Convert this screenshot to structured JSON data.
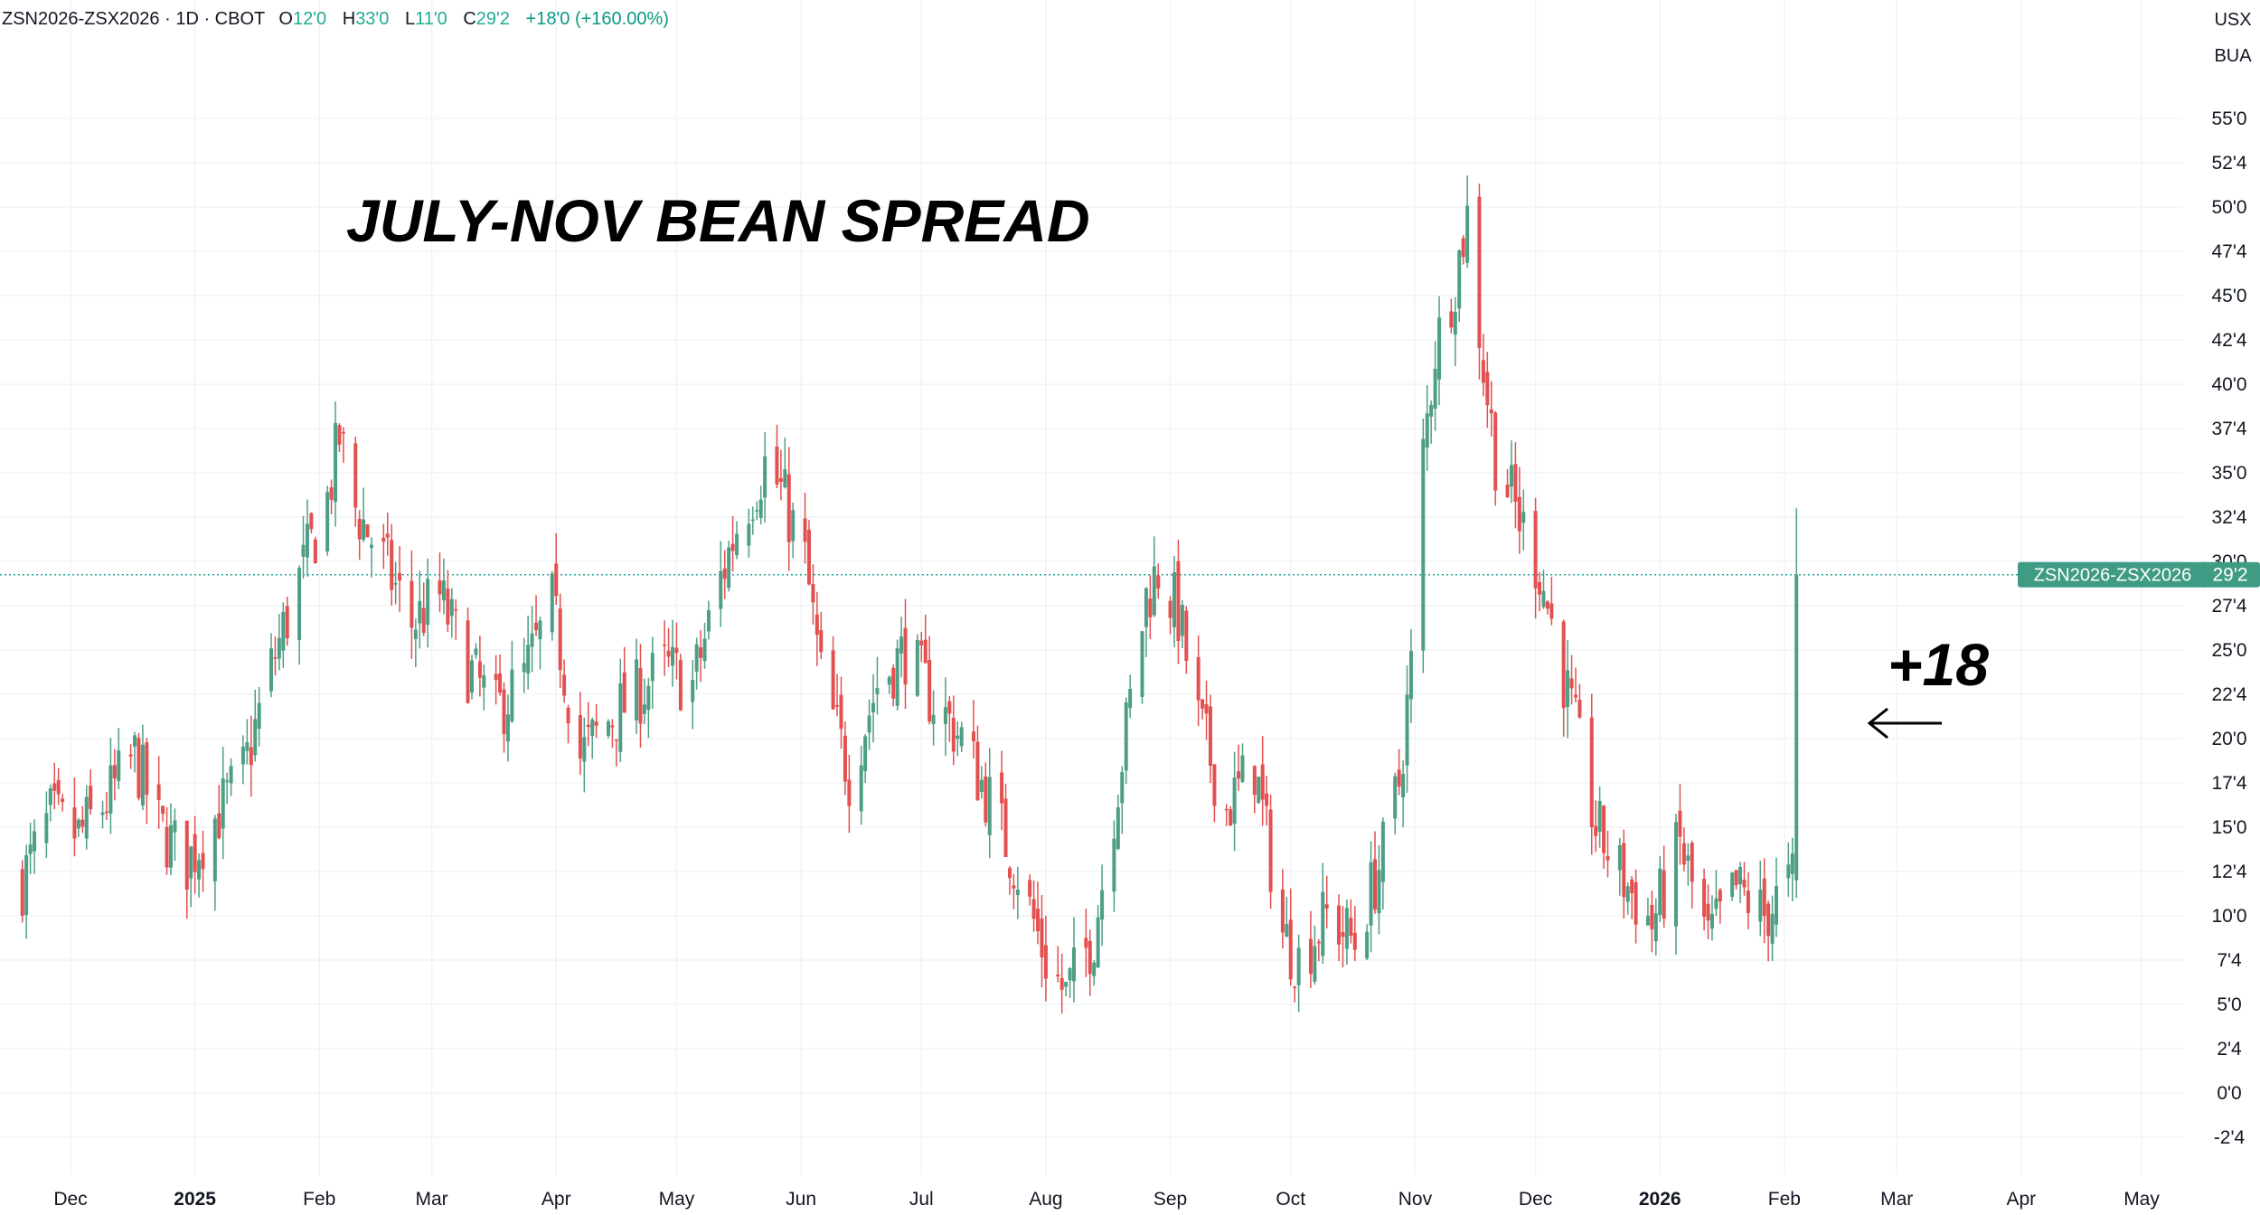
{
  "header": {
    "symbol": "ZSN2026-ZSX2026 · 1D · CBOT",
    "o_label": "O",
    "o_value": "12'0",
    "h_label": "H",
    "h_value": "33'0",
    "l_label": "L",
    "l_value": "11'0",
    "c_label": "C",
    "c_value": "29'2",
    "change": "+18'0 (+160.00%)"
  },
  "units": [
    "USX",
    "BUA"
  ],
  "last_price_label": {
    "name": "ZSN2026-ZSX2026",
    "value": "29'2"
  },
  "colors": {
    "up": "#4e9e86",
    "down": "#e2504f",
    "grid": "#f0f3fa",
    "price_line": "#26a69a",
    "label_bg": "#3f9b84"
  },
  "chart_data": {
    "type": "candlestick",
    "title": "JULY-NOV BEAN SPREAD",
    "annotation": "+18",
    "annotation_arrow": "left-arrow",
    "ylim": [
      -4.5,
      61
    ],
    "y_ticks": [
      {
        "value": 55,
        "label": "55'0"
      },
      {
        "value": 52.5,
        "label": "52'4"
      },
      {
        "value": 50,
        "label": "50'0"
      },
      {
        "value": 47.5,
        "label": "47'4"
      },
      {
        "value": 45,
        "label": "45'0"
      },
      {
        "value": 42.5,
        "label": "42'4"
      },
      {
        "value": 40,
        "label": "40'0"
      },
      {
        "value": 37.5,
        "label": "37'4"
      },
      {
        "value": 35,
        "label": "35'0"
      },
      {
        "value": 32.5,
        "label": "32'4"
      },
      {
        "value": 30,
        "label": "30'0"
      },
      {
        "value": 27.5,
        "label": "27'4"
      },
      {
        "value": 25,
        "label": "25'0"
      },
      {
        "value": 22.5,
        "label": "22'4"
      },
      {
        "value": 20,
        "label": "20'0"
      },
      {
        "value": 17.5,
        "label": "17'4"
      },
      {
        "value": 15,
        "label": "15'0"
      },
      {
        "value": 12.5,
        "label": "12'4"
      },
      {
        "value": 10,
        "label": "10'0"
      },
      {
        "value": 7.5,
        "label": "7'4"
      },
      {
        "value": 5,
        "label": "5'0"
      },
      {
        "value": 2.5,
        "label": "2'4"
      },
      {
        "value": 0,
        "label": "0'0"
      },
      {
        "value": -2.5,
        "label": "-2'4"
      }
    ],
    "x_ticks": [
      {
        "date": "2024-12-01",
        "label": "Dec",
        "bold": false
      },
      {
        "date": "2025-01-01",
        "label": "2025",
        "bold": true
      },
      {
        "date": "2025-02-01",
        "label": "Feb",
        "bold": false
      },
      {
        "date": "2025-03-01",
        "label": "Mar",
        "bold": false
      },
      {
        "date": "2025-04-01",
        "label": "Apr",
        "bold": false
      },
      {
        "date": "2025-05-01",
        "label": "May",
        "bold": false
      },
      {
        "date": "2025-06-01",
        "label": "Jun",
        "bold": false
      },
      {
        "date": "2025-07-01",
        "label": "Jul",
        "bold": false
      },
      {
        "date": "2025-08-01",
        "label": "Aug",
        "bold": false
      },
      {
        "date": "2025-09-01",
        "label": "Sep",
        "bold": false
      },
      {
        "date": "2025-10-01",
        "label": "Oct",
        "bold": false
      },
      {
        "date": "2025-11-01",
        "label": "Nov",
        "bold": false
      },
      {
        "date": "2025-12-01",
        "label": "Dec",
        "bold": false
      },
      {
        "date": "2026-01-01",
        "label": "2026",
        "bold": true
      },
      {
        "date": "2026-02-01",
        "label": "Feb",
        "bold": false
      },
      {
        "date": "2026-03-01",
        "label": "Mar",
        "bold": false
      },
      {
        "date": "2026-04-01",
        "label": "Apr",
        "bold": false
      },
      {
        "date": "2026-05-01",
        "label": "May",
        "bold": false
      }
    ],
    "last_close": 29.25,
    "series_note": "daily close path, approx.",
    "closes": [
      {
        "date": "2024-11-19",
        "close": 12
      },
      {
        "date": "2024-11-26",
        "close": 15.5
      },
      {
        "date": "2024-12-03",
        "close": 14.5
      },
      {
        "date": "2024-12-10",
        "close": 16.5
      },
      {
        "date": "2024-12-17",
        "close": 19
      },
      {
        "date": "2024-12-23",
        "close": 15
      },
      {
        "date": "2024-12-30",
        "close": 13
      },
      {
        "date": "2025-01-06",
        "close": 15.5
      },
      {
        "date": "2025-01-13",
        "close": 18
      },
      {
        "date": "2025-01-20",
        "close": 24
      },
      {
        "date": "2025-01-27",
        "close": 29
      },
      {
        "date": "2025-02-03",
        "close": 33.5
      },
      {
        "date": "2025-02-06",
        "close": 37
      },
      {
        "date": "2025-02-10",
        "close": 33
      },
      {
        "date": "2025-02-17",
        "close": 30
      },
      {
        "date": "2025-02-24",
        "close": 26.5
      },
      {
        "date": "2025-03-03",
        "close": 28
      },
      {
        "date": "2025-03-10",
        "close": 24
      },
      {
        "date": "2025-03-17",
        "close": 21.5
      },
      {
        "date": "2025-03-24",
        "close": 23.5
      },
      {
        "date": "2025-03-31",
        "close": 27.5
      },
      {
        "date": "2025-04-07",
        "close": 19
      },
      {
        "date": "2025-04-14",
        "close": 21
      },
      {
        "date": "2025-04-21",
        "close": 22.5
      },
      {
        "date": "2025-04-28",
        "close": 24
      },
      {
        "date": "2025-05-05",
        "close": 23
      },
      {
        "date": "2025-05-12",
        "close": 29
      },
      {
        "date": "2025-05-16",
        "close": 32
      },
      {
        "date": "2025-05-23",
        "close": 35.5
      },
      {
        "date": "2025-05-27",
        "close": 34
      },
      {
        "date": "2025-06-02",
        "close": 30
      },
      {
        "date": "2025-06-06",
        "close": 23.5
      },
      {
        "date": "2025-06-13",
        "close": 18
      },
      {
        "date": "2025-06-20",
        "close": 23
      },
      {
        "date": "2025-06-27",
        "close": 25
      },
      {
        "date": "2025-07-03",
        "close": 22.5
      },
      {
        "date": "2025-07-11",
        "close": 20
      },
      {
        "date": "2025-07-18",
        "close": 16.5
      },
      {
        "date": "2025-07-25",
        "close": 12.5
      },
      {
        "date": "2025-08-01",
        "close": 7.5
      },
      {
        "date": "2025-08-06",
        "close": 5.5
      },
      {
        "date": "2025-08-13",
        "close": 9
      },
      {
        "date": "2025-08-20",
        "close": 19
      },
      {
        "date": "2025-08-26",
        "close": 28
      },
      {
        "date": "2025-08-29",
        "close": 29.5
      },
      {
        "date": "2025-09-03",
        "close": 27
      },
      {
        "date": "2025-09-08",
        "close": 21
      },
      {
        "date": "2025-09-15",
        "close": 16
      },
      {
        "date": "2025-09-22",
        "close": 18.5
      },
      {
        "date": "2025-09-29",
        "close": 9
      },
      {
        "date": "2025-10-03",
        "close": 7.5
      },
      {
        "date": "2025-10-10",
        "close": 10
      },
      {
        "date": "2025-10-17",
        "close": 8.5
      },
      {
        "date": "2025-10-24",
        "close": 13.5
      },
      {
        "date": "2025-10-28",
        "close": 17.5
      },
      {
        "date": "2025-10-31",
        "close": 24
      },
      {
        "date": "2025-11-03",
        "close": 36
      },
      {
        "date": "2025-11-06",
        "close": 42
      },
      {
        "date": "2025-11-11",
        "close": 46
      },
      {
        "date": "2025-11-14",
        "close": 49.5
      },
      {
        "date": "2025-11-18",
        "close": 41
      },
      {
        "date": "2025-11-21",
        "close": 36
      },
      {
        "date": "2025-11-26",
        "close": 33
      },
      {
        "date": "2025-12-02",
        "close": 29.5
      },
      {
        "date": "2025-12-09",
        "close": 22.5
      },
      {
        "date": "2025-12-16",
        "close": 15
      },
      {
        "date": "2025-12-23",
        "close": 12
      },
      {
        "date": "2025-12-30",
        "close": 9.5
      },
      {
        "date": "2026-01-06",
        "close": 14
      },
      {
        "date": "2026-01-13",
        "close": 8.5
      },
      {
        "date": "2026-01-20",
        "close": 11.5
      },
      {
        "date": "2026-01-27",
        "close": 10
      },
      {
        "date": "2026-02-03",
        "close": 12
      },
      {
        "date": "2026-02-04",
        "close": 29.25
      }
    ]
  }
}
